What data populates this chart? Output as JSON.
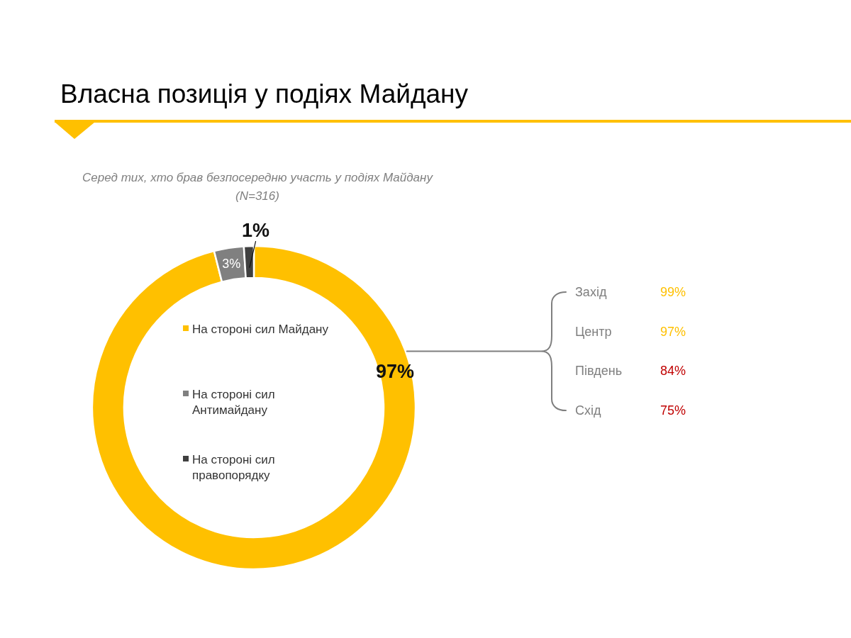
{
  "chart_data": [
    {
      "type": "donut",
      "title": "Власна позиція у подіях Майдану",
      "subtitle": "Серед тих, хто брав безпосередню участь у подіях Майдану\n(N=316)",
      "categories": [
        "На стороні сил Майдану",
        "На стороні сил Антимайдану",
        "На стороні сил правопорядку"
      ],
      "values": [
        97,
        3,
        1
      ],
      "colors": [
        "#ffc000",
        "#808080",
        "#404040"
      ],
      "value_labels": [
        "97%",
        "3%",
        "1%"
      ],
      "legend": "center"
    },
    {
      "type": "other",
      "categories": [
        "Захід",
        "Центр",
        "Південь",
        "Схід"
      ],
      "values": [
        99,
        97,
        84,
        75
      ],
      "colors": [
        "#ffc000",
        "#ffc000",
        "#c00000",
        "#c00000"
      ],
      "value_labels": [
        "99%",
        "97%",
        "84%",
        "75%"
      ]
    }
  ]
}
